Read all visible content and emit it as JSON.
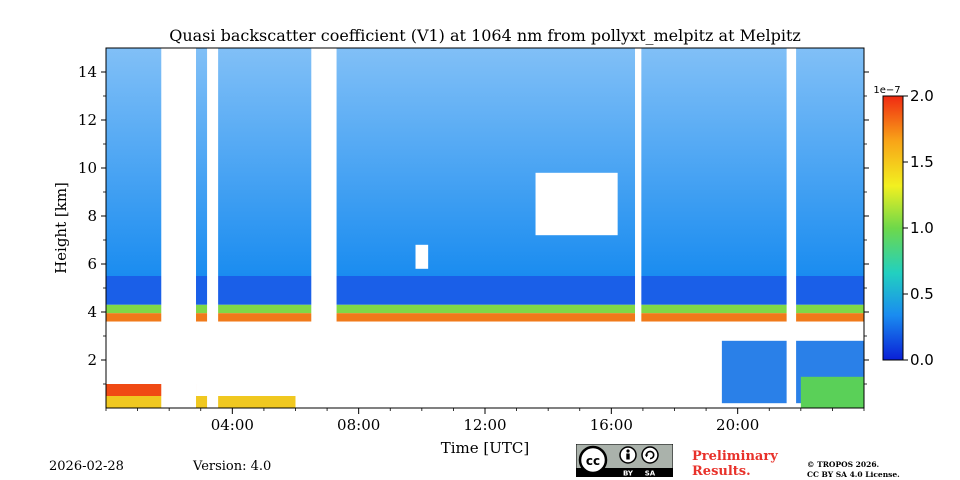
{
  "chart_data": {
    "type": "heatmap",
    "title": "Quasi backscatter coefficient (V1) at 1064 nm from pollyxt_melpitz at Melpitz",
    "xlabel": "Time [UTC]",
    "ylabel": "Height [km]",
    "xlim": [
      0,
      24
    ],
    "ylim": [
      0,
      15
    ],
    "x_ticks": [
      {
        "value": 4,
        "label": "04:00"
      },
      {
        "value": 8,
        "label": "08:00"
      },
      {
        "value": 12,
        "label": "12:00"
      },
      {
        "value": 16,
        "label": "16:00"
      },
      {
        "value": 20,
        "label": "20:00"
      }
    ],
    "y_ticks": [
      {
        "value": 2,
        "label": "2"
      },
      {
        "value": 4,
        "label": "4"
      },
      {
        "value": 6,
        "label": "6"
      },
      {
        "value": 8,
        "label": "8"
      },
      {
        "value": 10,
        "label": "10"
      },
      {
        "value": 12,
        "label": "12"
      },
      {
        "value": 14,
        "label": "14"
      }
    ],
    "colorbar": {
      "min": 0.0,
      "max": 2.0,
      "scale_label": "1e−7",
      "ticks": [
        {
          "value": 0.0,
          "label": "0.0"
        },
        {
          "value": 0.5,
          "label": "0.5"
        },
        {
          "value": 1.0,
          "label": "1.0"
        },
        {
          "value": 1.5,
          "label": "1.5"
        },
        {
          "value": 2.0,
          "label": "2.0"
        }
      ],
      "colors": [
        "#0a1fd6",
        "#1a8cf0",
        "#22d0c0",
        "#6ed84a",
        "#f2f020",
        "#f8a418",
        "#f02a12"
      ]
    },
    "no_data_periods": [
      [
        1.75,
        2.85
      ],
      [
        3.2,
        3.55
      ],
      [
        6.5,
        7.3
      ],
      [
        16.75,
        16.95
      ],
      [
        21.55,
        21.85
      ]
    ],
    "aerosol_layer_top_km": 4.3,
    "near_surface_layer_top_km": 1.0
  },
  "footer": {
    "date": "2026-02-28",
    "version": "Version: 4.0",
    "preliminary_line1": "Preliminary",
    "preliminary_line2": "Results.",
    "copyright_line1": "© TROPOS 2026.",
    "copyright_line2": "CC BY SA 4.0 License.",
    "cc_label": "cc",
    "by_label": "BY",
    "sa_label": "SA"
  }
}
